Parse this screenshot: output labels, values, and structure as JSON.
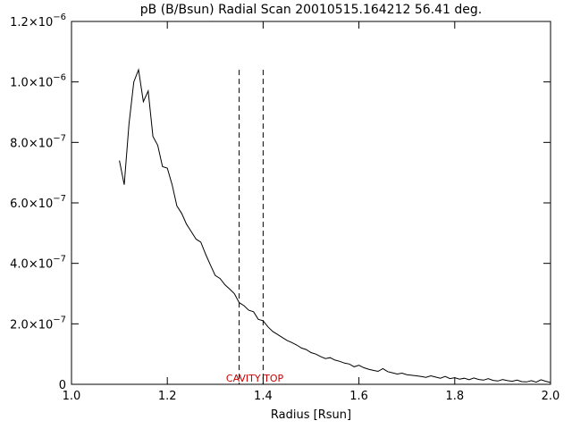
{
  "chart_data": {
    "type": "line",
    "title": "pB (B/Bsun) Radial Scan 20010515.164212 56.41 deg.",
    "xlabel": "Radius [Rsun]",
    "ylabel": "",
    "xlim": [
      1.0,
      2.0
    ],
    "ylim": [
      0,
      1.2e-06
    ],
    "grid": false,
    "x_ticks": [
      {
        "value": 1.0,
        "label": "1.0"
      },
      {
        "value": 1.2,
        "label": "1.2"
      },
      {
        "value": 1.4,
        "label": "1.4"
      },
      {
        "value": 1.6,
        "label": "1.6"
      },
      {
        "value": 1.8,
        "label": "1.8"
      },
      {
        "value": 2.0,
        "label": "2.0"
      }
    ],
    "y_ticks": [
      {
        "value": 0,
        "mantissa": "0",
        "exponent": ""
      },
      {
        "value": 2e-07,
        "mantissa": "2.0×10",
        "exponent": "−7"
      },
      {
        "value": 4e-07,
        "mantissa": "4.0×10",
        "exponent": "−7"
      },
      {
        "value": 6e-07,
        "mantissa": "6.0×10",
        "exponent": "−7"
      },
      {
        "value": 8e-07,
        "mantissa": "8.0×10",
        "exponent": "−7"
      },
      {
        "value": 1e-06,
        "mantissa": "1.0×10",
        "exponent": "−6"
      },
      {
        "value": 1.2e-06,
        "mantissa": "1.2×10",
        "exponent": "−6"
      }
    ],
    "series": [
      {
        "x": [
          1.1,
          1.11,
          1.12,
          1.13,
          1.14,
          1.15,
          1.16,
          1.17,
          1.18,
          1.19,
          1.2,
          1.21,
          1.22,
          1.23,
          1.24,
          1.25,
          1.26,
          1.27,
          1.28,
          1.29,
          1.3,
          1.31,
          1.32,
          1.33,
          1.34,
          1.35,
          1.36,
          1.37,
          1.38,
          1.39,
          1.4,
          1.41,
          1.42,
          1.43,
          1.44,
          1.45,
          1.46,
          1.47,
          1.48,
          1.49,
          1.5,
          1.51,
          1.52,
          1.53,
          1.54,
          1.55,
          1.56,
          1.57,
          1.58,
          1.59,
          1.6,
          1.61,
          1.62,
          1.63,
          1.64,
          1.65,
          1.66,
          1.67,
          1.68,
          1.69,
          1.7,
          1.71,
          1.72,
          1.73,
          1.74,
          1.75,
          1.76,
          1.77,
          1.78,
          1.79,
          1.8,
          1.81,
          1.82,
          1.83,
          1.84,
          1.85,
          1.86,
          1.87,
          1.88,
          1.89,
          1.9,
          1.91,
          1.92,
          1.93,
          1.94,
          1.95,
          1.96,
          1.97,
          1.98,
          1.99,
          2.0
        ],
        "y": [
          7.4e-07,
          6.6e-07,
          8.6e-07,
          1e-06,
          1.04e-06,
          9.35e-07,
          9.7e-07,
          8.2e-07,
          7.9e-07,
          7.2e-07,
          7.15e-07,
          6.6e-07,
          5.9e-07,
          5.65e-07,
          5.3e-07,
          5.05e-07,
          4.8e-07,
          4.7e-07,
          4.3e-07,
          3.95e-07,
          3.6e-07,
          3.5e-07,
          3.3e-07,
          3.15e-07,
          3e-07,
          2.7e-07,
          2.6e-07,
          2.45e-07,
          2.4e-07,
          2.15e-07,
          2.1e-07,
          1.9e-07,
          1.75e-07,
          1.65e-07,
          1.55e-07,
          1.45e-07,
          1.38e-07,
          1.3e-07,
          1.2e-07,
          1.15e-07,
          1.05e-07,
          1e-07,
          9.2e-08,
          8.5e-08,
          8.8e-08,
          8e-08,
          7.6e-08,
          7e-08,
          6.7e-08,
          5.8e-08,
          6.3e-08,
          5.5e-08,
          5e-08,
          4.6e-08,
          4.3e-08,
          5.2e-08,
          4.2e-08,
          3.8e-08,
          3.4e-08,
          3.7e-08,
          3.2e-08,
          3e-08,
          2.8e-08,
          2.6e-08,
          2.3e-08,
          2.8e-08,
          2.4e-08,
          2e-08,
          2.6e-08,
          1.9e-08,
          2.2e-08,
          1.7e-08,
          2e-08,
          1.5e-08,
          2.1e-08,
          1.6e-08,
          1.4e-08,
          1.9e-08,
          1.3e-08,
          1.1e-08,
          1.6e-08,
          1.2e-08,
          1e-08,
          1.4e-08,
          9e-09,
          8e-09,
          1.2e-08,
          7e-09,
          1.5e-08,
          1e-08,
          6e-09
        ]
      }
    ],
    "vlines": [
      1.35,
      1.4
    ],
    "vline_top": 1.04e-06,
    "annotation": {
      "text": "CAVITY TOP",
      "x": 1.35,
      "color": "#cc0000"
    }
  }
}
